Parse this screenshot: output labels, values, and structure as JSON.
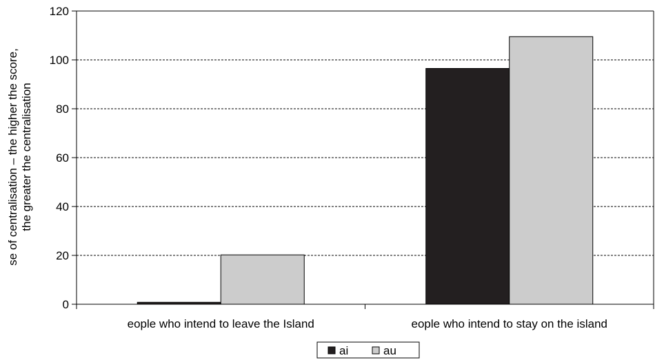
{
  "chart_data": {
    "type": "bar",
    "title": "",
    "xlabel": "",
    "ylabel_lines": [
      "se of centralisation – the higher the score,",
      "the greater the centralisation"
    ],
    "categories": [
      "eople who intend to leave the Island",
      "eople who intend to stay on the island"
    ],
    "series": [
      {
        "name": "ai",
        "color": "#231f20",
        "values": [
          0.8,
          96.5
        ]
      },
      {
        "name": "au",
        "color": "#cccccc",
        "values": [
          20.2,
          109.5
        ]
      }
    ],
    "ylim": [
      0,
      120
    ],
    "yticks": [
      0,
      20,
      40,
      60,
      80,
      100,
      120
    ],
    "grid": true,
    "legend_position": "bottom-center"
  }
}
